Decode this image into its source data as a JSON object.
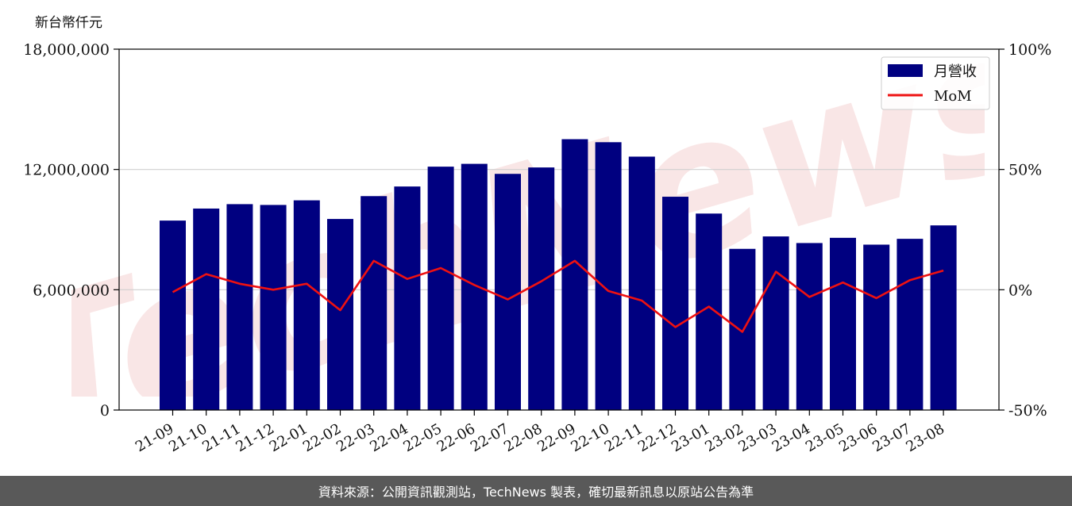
{
  "unit_label": "新台幣仟元",
  "footer_text": "資料來源：公開資訊觀測站，TechNews 製表，確切最新訊息以原站公告為準",
  "colors": {
    "bar": "#000080",
    "line": "#ee1111",
    "grid": "#d0d0d0",
    "watermark": "#f6d6d6",
    "footer_bg": "#595959"
  },
  "chart_data": {
    "type": "bar",
    "categories": [
      "21-09",
      "21-10",
      "21-11",
      "21-12",
      "22-01",
      "22-02",
      "22-03",
      "22-04",
      "22-05",
      "22-06",
      "22-07",
      "22-08",
      "22-09",
      "22-10",
      "22-11",
      "22-12",
      "23-01",
      "23-02",
      "23-03",
      "23-04",
      "23-05",
      "23-06",
      "23-07",
      "23-08"
    ],
    "series": [
      {
        "name": "月營收",
        "type": "bar",
        "axis": "left",
        "values": [
          9450000,
          10050000,
          10270000,
          10230000,
          10460000,
          9530000,
          10670000,
          11150000,
          12140000,
          12280000,
          11780000,
          12100000,
          13510000,
          13360000,
          12640000,
          10640000,
          9800000,
          8040000,
          8660000,
          8330000,
          8590000,
          8250000,
          8540000,
          9210000
        ]
      },
      {
        "name": "MoM",
        "type": "line",
        "axis": "right",
        "values": [
          -1,
          6.5,
          2.5,
          0,
          2.5,
          -8.5,
          12,
          4.5,
          9,
          2,
          -4,
          3.5,
          12,
          -0.5,
          -4.5,
          -15.5,
          -7,
          -17.5,
          7.5,
          -3,
          3,
          -3.5,
          4,
          8
        ]
      }
    ],
    "y_left": {
      "ylim": [
        0,
        18000000
      ],
      "ticks": [
        "0",
        "6,000,000",
        "12,000,000",
        "18,000,000"
      ],
      "tick_values": [
        0,
        6000000,
        12000000,
        18000000
      ]
    },
    "y_right": {
      "ylim": [
        -50,
        100
      ],
      "ticks": [
        "-50%",
        "0%",
        "50%",
        "100%"
      ],
      "tick_values": [
        -50,
        0,
        50,
        100
      ]
    },
    "grid": "horizontal",
    "legend_position": "top-right",
    "title": "",
    "xlabel": ""
  }
}
